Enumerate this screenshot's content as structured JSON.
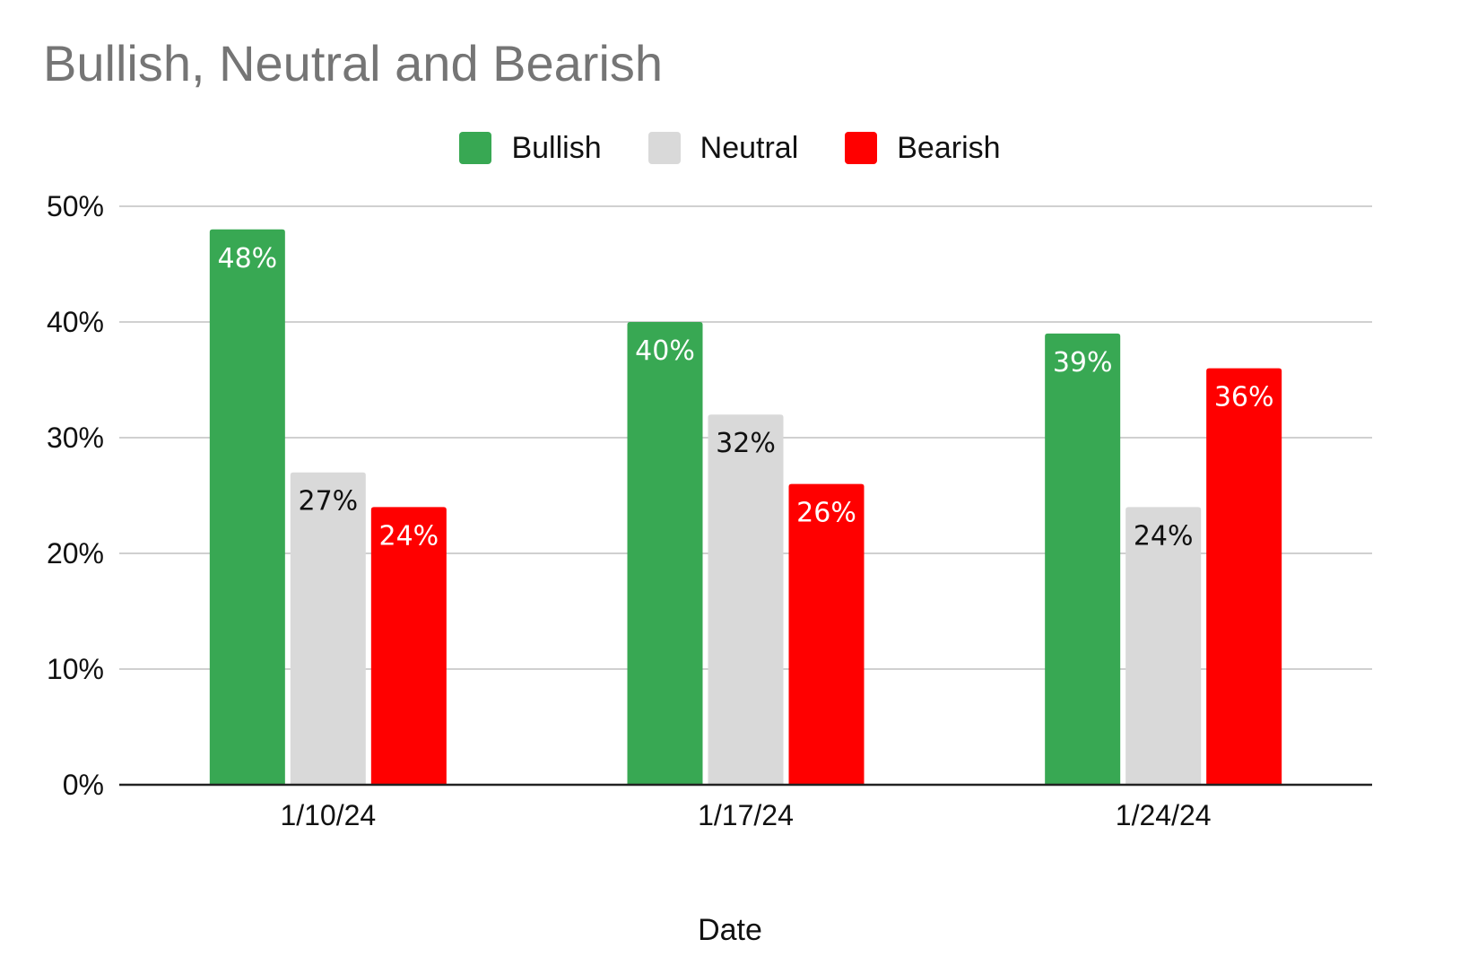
{
  "chart_data": {
    "type": "bar",
    "title": "Bullish, Neutral and Bearish",
    "xlabel": "Date",
    "ylabel": "",
    "categories": [
      "1/10/24",
      "1/17/24",
      "1/24/24"
    ],
    "series": [
      {
        "name": "Bullish",
        "color": "#38a853",
        "label_color": "#ffffff",
        "values": [
          48,
          40,
          39
        ],
        "labels": [
          "48%",
          "40%",
          "39%"
        ]
      },
      {
        "name": "Neutral",
        "color": "#d9d9d9",
        "label_color": "#111111",
        "values": [
          27,
          32,
          24
        ],
        "labels": [
          "27%",
          "32%",
          "24%"
        ]
      },
      {
        "name": "Bearish",
        "color": "#ff0000",
        "label_color": "#ffffff",
        "values": [
          24,
          26,
          36
        ],
        "labels": [
          "24%",
          "26%",
          "36%"
        ]
      }
    ],
    "ylim": [
      0,
      50
    ],
    "yticks": [
      "0%",
      "10%",
      "20%",
      "30%",
      "40%",
      "50%"
    ],
    "legend_position": "top-center",
    "grid": true
  }
}
